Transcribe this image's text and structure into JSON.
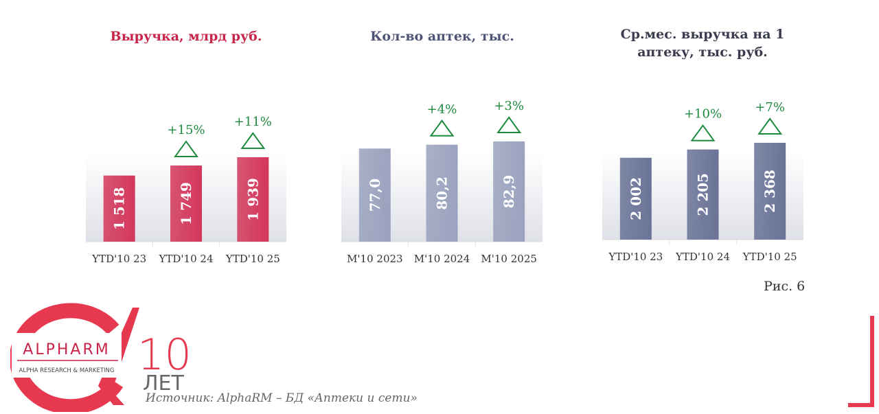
{
  "chart_data": [
    {
      "type": "bar",
      "title": "Выручка, млрд руб.",
      "categories": [
        "YTD'10 23",
        "YTD'10 24",
        "YTD'10 25"
      ],
      "values": [
        1518,
        1749,
        1939
      ],
      "value_labels": [
        "1 518",
        "1 749",
        "1 939"
      ],
      "growth_labels": [
        "",
        "+15%",
        "+11%"
      ],
      "ylim": [
        0,
        2100
      ],
      "grid": false,
      "colors": {
        "bar": "#d3375b",
        "title": "#c8254a"
      }
    },
    {
      "type": "bar",
      "title": "Кол-во аптек, тыс.",
      "categories": [
        "M'10 2023",
        "M'10 2024",
        "M'10 2025"
      ],
      "values": [
        77.0,
        80.2,
        82.9
      ],
      "value_labels": [
        "77,0",
        "80,2",
        "82,9"
      ],
      "growth_labels": [
        "",
        "+4%",
        "+3%"
      ],
      "ylim": [
        0,
        100
      ],
      "grid": false,
      "colors": {
        "bar": "#9aa2be",
        "title": "#4f5577"
      }
    },
    {
      "type": "bar",
      "title": "Ср.мес. выручка на 1 аптеку, тыс. руб.",
      "title_lines": [
        "Ср.мес. выручка на 1",
        "аптеку, тыс. руб."
      ],
      "categories": [
        "YTD'10 23",
        "YTD'10 24",
        "YTD'10 25"
      ],
      "values": [
        2002,
        2205,
        2368
      ],
      "value_labels": [
        "2 002",
        "2 205",
        "2 368"
      ],
      "growth_labels": [
        "",
        "+10%",
        "+7%"
      ],
      "ylim": [
        0,
        2800
      ],
      "grid": false,
      "colors": {
        "bar": "#6a7397",
        "title": "#3b3d4e"
      }
    }
  ],
  "growth_color": "#1e8a3e",
  "figure_label": "Рис. 6",
  "source": "Источник: AlphaRM – БД «Аптеки и сети»",
  "logo": {
    "brand": "ALPHARM",
    "tagline": "ALPHA RESEARCH & MARKETING",
    "years": "10",
    "years_word": "ЛЕТ",
    "color": "#e63950"
  }
}
